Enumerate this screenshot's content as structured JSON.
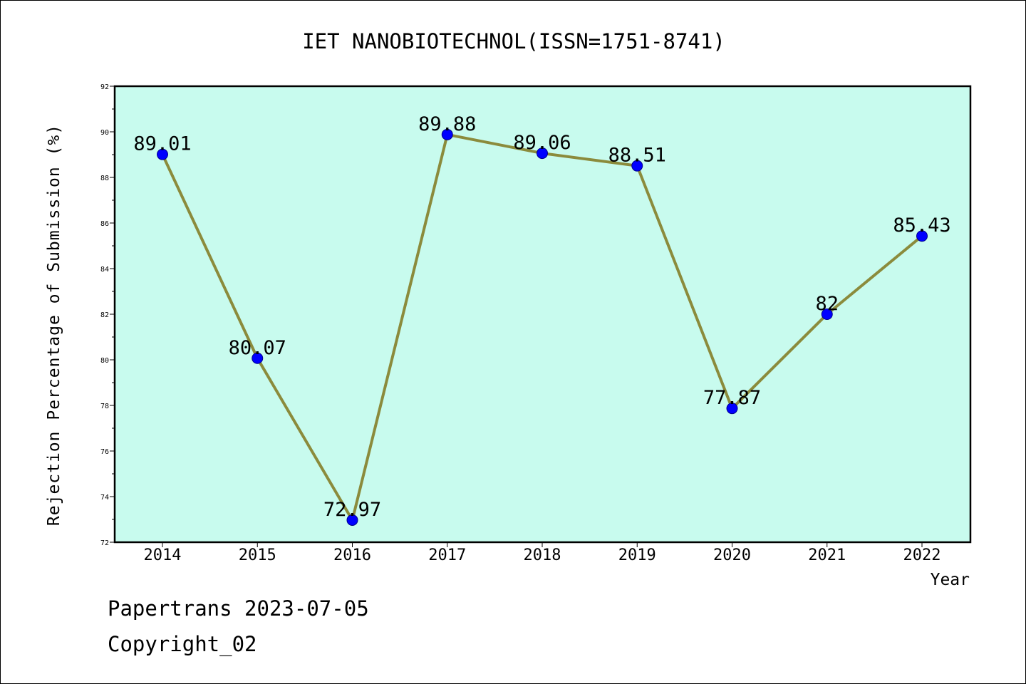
{
  "chart_data": {
    "type": "line",
    "title": "IET NANOBIOTECHNOL(ISSN=1751-8741)",
    "xlabel": "Year",
    "ylabel": "Rejection Percentage of Submission (%)",
    "categories": [
      "2014",
      "2015",
      "2016",
      "2017",
      "2018",
      "2019",
      "2020",
      "2021",
      "2022"
    ],
    "values": [
      89.01,
      80.07,
      72.97,
      89.88,
      89.06,
      88.51,
      77.87,
      82,
      85.43
    ],
    "data_labels": [
      "89.01",
      "80.07",
      "72.97",
      "89.88",
      "89.06",
      "88.51",
      "77.87",
      "82",
      "85.43"
    ],
    "ylim": [
      72,
      92
    ],
    "yticks": [
      "72",
      "74",
      "76",
      "78",
      "80",
      "82",
      "84",
      "86",
      "88",
      "90",
      "92"
    ],
    "grid": false,
    "legend": "none",
    "colors": {
      "plot_background": "#c8fbee",
      "line": "#8b8b3c",
      "marker": "#0000ff"
    }
  },
  "footer": {
    "line1": "Papertrans 2023-07-05",
    "line2": "Copyright_02"
  }
}
